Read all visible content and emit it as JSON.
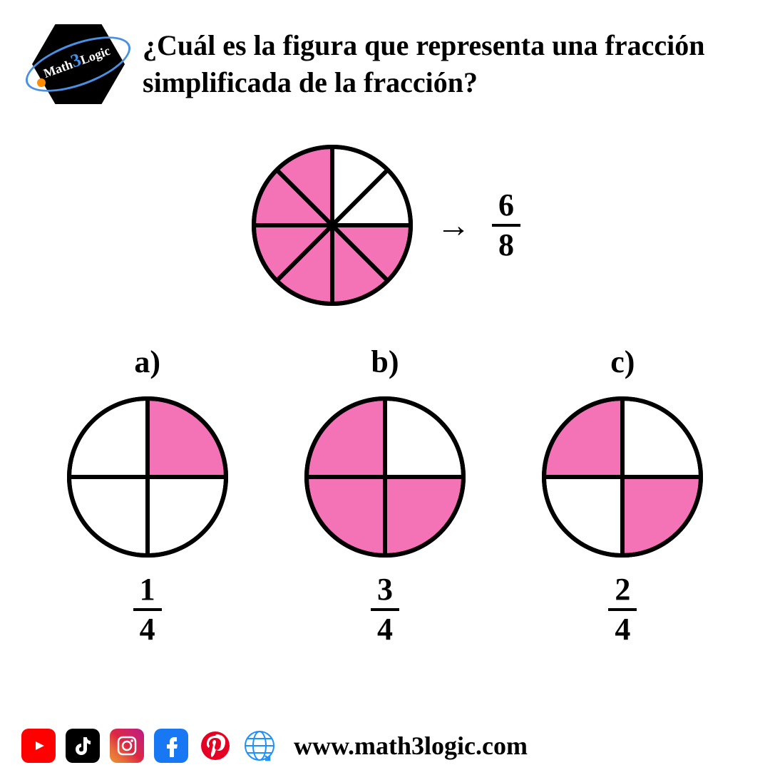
{
  "logo": {
    "brand_math": "Math",
    "brand_three": "3",
    "brand_logic": "Logic"
  },
  "question": "¿Cuál es la figura que representa una fracción simplificada de la fracción?",
  "colors": {
    "fill": "#f472b6",
    "empty": "#ffffff",
    "stroke": "#000000",
    "stroke_width": 6
  },
  "main_pie": {
    "radius": 110,
    "slices": 8,
    "filled": [
      false,
      false,
      true,
      true,
      true,
      true,
      true,
      true
    ],
    "fraction": {
      "num": "6",
      "den": "8"
    }
  },
  "arrow": "→",
  "options": [
    {
      "label": "a)",
      "radius": 110,
      "slices": 4,
      "filled": [
        true,
        false,
        false,
        false
      ],
      "fraction": {
        "num": "1",
        "den": "4"
      }
    },
    {
      "label": "b)",
      "radius": 110,
      "slices": 4,
      "filled": [
        false,
        true,
        true,
        true
      ],
      "fraction": {
        "num": "3",
        "den": "4"
      }
    },
    {
      "label": "c)",
      "radius": 110,
      "slices": 4,
      "filled": [
        false,
        true,
        false,
        true
      ],
      "fraction": {
        "num": "2",
        "den": "4"
      }
    }
  ],
  "footer": {
    "url": "www.math3logic.com",
    "icons": [
      "youtube",
      "tiktok",
      "instagram",
      "facebook",
      "pinterest",
      "web"
    ]
  }
}
